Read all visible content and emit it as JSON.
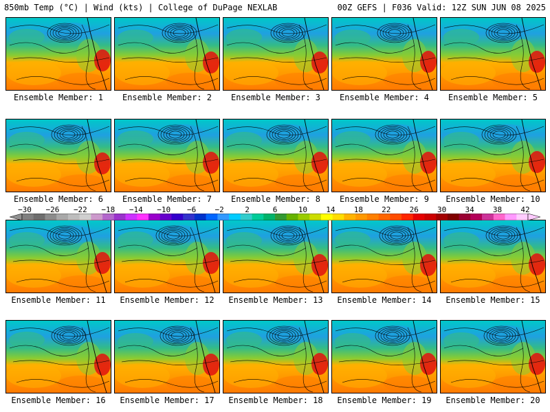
{
  "header": {
    "title": "850mb Temp (°C) | Wind (kts) | College of DuPage NEXLAB",
    "run_info": "00Z GEFS | F036 Valid: 12Z SUN JUN 08 2025"
  },
  "members": [
    {
      "label": "Ensemble Member: 1"
    },
    {
      "label": "Ensemble Member: 2"
    },
    {
      "label": "Ensemble Member: 3"
    },
    {
      "label": "Ensemble Member: 4"
    },
    {
      "label": "Ensemble Member: 5"
    },
    {
      "label": "Ensemble Member: 6"
    },
    {
      "label": "Ensemble Member: 7"
    },
    {
      "label": "Ensemble Member: 8"
    },
    {
      "label": "Ensemble Member: 9"
    },
    {
      "label": "Ensemble Member: 10"
    },
    {
      "label": "Ensemble Member: 11"
    },
    {
      "label": "Ensemble Member: 12"
    },
    {
      "label": "Ensemble Member: 13"
    },
    {
      "label": "Ensemble Member: 14"
    },
    {
      "label": "Ensemble Member: 15"
    },
    {
      "label": "Ensemble Member: 16"
    },
    {
      "label": "Ensemble Member: 17"
    },
    {
      "label": "Ensemble Member: 18"
    },
    {
      "label": "Ensemble Member: 19"
    },
    {
      "label": "Ensemble Member: 20"
    }
  ],
  "colorbar": {
    "tick_labels": [
      "−30",
      "−26",
      "−22",
      "−18",
      "−14",
      "−10",
      "−6",
      "−2",
      "2",
      "6",
      "10",
      "14",
      "18",
      "22",
      "26",
      "30",
      "34",
      "38",
      "42"
    ],
    "colors": [
      "#808080",
      "#6e6e6e",
      "#8c8c8c",
      "#a8a8a8",
      "#bdbdbd",
      "#cfcfcf",
      "#cc99cc",
      "#b366cc",
      "#9933cc",
      "#cc33ff",
      "#ff33ff",
      "#9900cc",
      "#6600cc",
      "#3300cc",
      "#3333cc",
      "#0033cc",
      "#0066ff",
      "#3399ff",
      "#00ccff",
      "#33cccc",
      "#00cc99",
      "#00b36b",
      "#339933",
      "#66b300",
      "#99cc00",
      "#ccdd00",
      "#ffff00",
      "#ffdd00",
      "#ffb300",
      "#ff9900",
      "#ff8000",
      "#ff6600",
      "#ff4d00",
      "#ff2600",
      "#e60000",
      "#cc0000",
      "#a30000",
      "#800000",
      "#990033",
      "#b30059",
      "#cc3399",
      "#ff66cc",
      "#ff99ff",
      "#ffccff"
    ]
  },
  "map_colors": {
    "cold": "#1fa0e0",
    "cool": "#00c8c8",
    "mild": "#33bb88",
    "warmish": "#88cc33",
    "warm": "#ffb000",
    "hot": "#ff7a00",
    "very_hot": "#e01010",
    "contour": "#000000"
  }
}
